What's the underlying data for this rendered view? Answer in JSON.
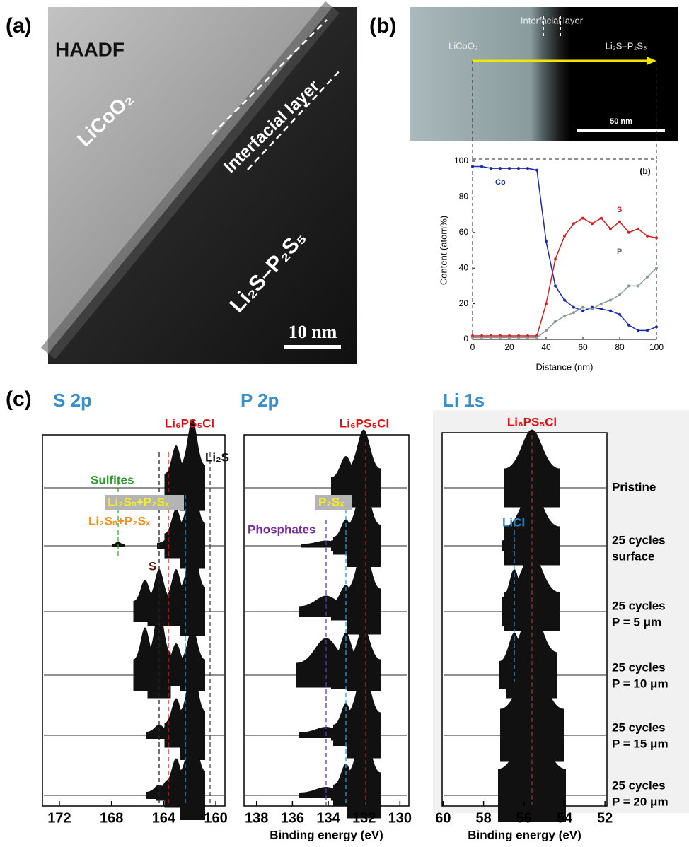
{
  "panels": {
    "a": {
      "label": "(a)",
      "texts": [
        "HAADF",
        "LiCoO₂",
        "Interfacial layer",
        "Li₂S–P₂S₅"
      ],
      "scale_bar": "10 nm"
    },
    "b": {
      "label": "(b)",
      "image_texts": [
        "LiCoO₂",
        "Interfacial layer",
        "Li₂S–P₂S₅"
      ],
      "scale_bar": "50 nm"
    },
    "c": {
      "label": "(c)"
    }
  },
  "chart_data": [
    {
      "type": "line",
      "inset_label": "(b)",
      "xlabel": "Distance (nm)",
      "ylabel": "Content (atom%)",
      "x": [
        0,
        5,
        10,
        15,
        20,
        25,
        30,
        35,
        40,
        45,
        50,
        55,
        60,
        65,
        70,
        75,
        80,
        85,
        90,
        95,
        100
      ],
      "series": [
        {
          "name": "Co",
          "color": "#1a2aa8",
          "values": [
            97,
            97,
            96,
            96,
            96,
            96,
            96,
            95,
            55,
            30,
            22,
            18,
            16,
            18,
            17,
            16,
            14,
            8,
            5,
            5,
            7
          ]
        },
        {
          "name": "S",
          "color": "#d02020",
          "values": [
            2,
            2,
            2,
            2,
            2,
            2,
            2,
            2,
            20,
            45,
            58,
            65,
            68,
            65,
            68,
            62,
            66,
            60,
            62,
            58,
            57
          ]
        },
        {
          "name": "P",
          "color": "#8a9a9a",
          "values": [
            1,
            1,
            1,
            1,
            1,
            1,
            1,
            1,
            5,
            10,
            13,
            15,
            18,
            17,
            20,
            22,
            25,
            30,
            30,
            35,
            40
          ]
        }
      ],
      "xlim": [
        0,
        100
      ],
      "ylim": [
        0,
        100
      ],
      "xticks": [
        0,
        20,
        40,
        60,
        80,
        100
      ],
      "yticks": [
        0,
        20,
        40,
        60,
        80,
        100
      ]
    },
    {
      "type": "xps",
      "title": "S 2p",
      "xlim": [
        173.3,
        159.3
      ],
      "xticks": [
        172,
        168,
        164,
        160
      ],
      "annotations": [
        "Li₆PS₅Cl",
        "Li₂S",
        "Sulfites",
        "Li₂Sₙ+P₂Sₓ",
        "Li₂Sₙ+P₂Sₓ",
        "S"
      ]
    },
    {
      "type": "xps",
      "title": "P 2p",
      "xlim": [
        138.7,
        129.5
      ],
      "xticks": [
        138,
        136,
        134,
        132,
        130
      ],
      "xlabel": "Binding energy (eV)",
      "annotations": [
        "Li₆PS₅Cl",
        "P₂Sₓ",
        "Phosphates"
      ]
    },
    {
      "type": "xps",
      "title": "Li 1s",
      "xlim": [
        60.05,
        51.9
      ],
      "xticks": [
        60,
        58,
        56,
        54,
        52
      ],
      "xlabel": "Binding energy (eV)",
      "annotations": [
        "Li₆PS₅Cl",
        "LiCl"
      ],
      "row_labels": [
        [
          "Pristine"
        ],
        [
          "25 cycles",
          "surface"
        ],
        [
          "25 cycles",
          "P = 5 μm"
        ],
        [
          "25 cycles",
          "P = 10 μm"
        ],
        [
          "25 cycles",
          "P = 15 μm"
        ],
        [
          "25 cycles",
          "P = 20 μm"
        ]
      ]
    }
  ]
}
